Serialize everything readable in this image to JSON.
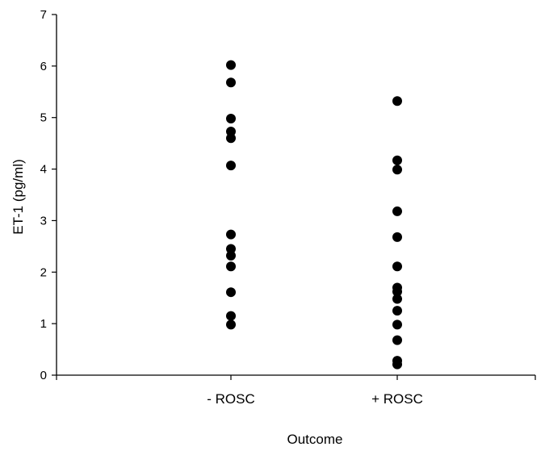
{
  "chart_data": {
    "type": "scatter",
    "title": "",
    "xlabel": "Outcome",
    "ylabel": "ET-1 (pg/ml)",
    "categories": [
      "- ROSC",
      "+ ROSC"
    ],
    "ylim": [
      0,
      7
    ],
    "yticks": [
      0,
      1,
      2,
      3,
      4,
      5,
      6,
      7
    ],
    "ytick_labels": [
      "0",
      "1",
      "2",
      "3",
      "4",
      "5",
      "6",
      "7"
    ],
    "grid": false,
    "legend": "none",
    "point_color": "#000000",
    "series": [
      {
        "category": "- ROSC",
        "values": [
          6.02,
          5.68,
          4.98,
          4.73,
          4.6,
          4.07,
          2.73,
          2.45,
          2.32,
          2.11,
          1.61,
          1.15,
          0.98
        ]
      },
      {
        "category": "+ ROSC",
        "values": [
          5.32,
          4.17,
          3.99,
          3.18,
          2.68,
          2.11,
          1.7,
          1.62,
          1.48,
          1.25,
          0.98,
          0.68,
          0.28,
          0.21
        ]
      }
    ]
  }
}
